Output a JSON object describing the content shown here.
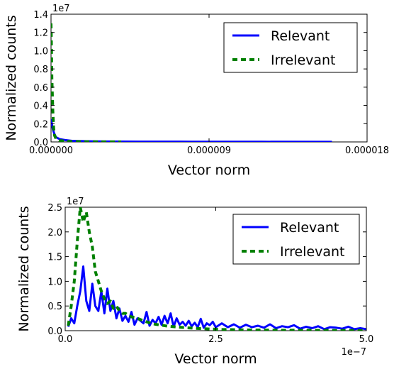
{
  "chart_data": [
    {
      "type": "line",
      "xlabel": "Vector norm",
      "ylabel": "Normalized counts",
      "xlim": [
        0,
        1.8e-05
      ],
      "ylim": [
        0,
        14000000
      ],
      "x_ticks": [
        "0.000000",
        "0.000009",
        "0.000018"
      ],
      "x_tick_values": [
        0,
        9e-06,
        1.8e-05
      ],
      "y_ticks": [
        "0.0",
        "0.2",
        "0.4",
        "0.6",
        "0.8",
        "1.0",
        "1.2",
        "1.4"
      ],
      "y_tick_values": [
        0,
        2000000,
        4000000,
        6000000,
        8000000,
        10000000,
        12000000,
        14000000
      ],
      "y_offset_text": "1e7",
      "legend_position": "upper-right",
      "grid": false,
      "series": [
        {
          "name": "Relevant",
          "color": "#0000ff",
          "style": "solid",
          "x": [
            0,
            5e-08,
            1e-07,
            2e-07,
            3e-07,
            5e-07,
            8e-07,
            1.2e-06,
            2e-06,
            3e-06,
            5e-06,
            8e-06,
            1.2e-05,
            1.6e-05
          ],
          "y": [
            2500000,
            2000000,
            1400000,
            800000,
            500000,
            300000,
            200000,
            120000,
            80000,
            50000,
            30000,
            20000,
            15000,
            10000
          ]
        },
        {
          "name": "Irrelevant",
          "color": "#008000",
          "style": "dashed",
          "x": [
            0,
            2e-08,
            5e-08,
            1e-07,
            1.5e-07,
            2e-07,
            3e-07,
            5e-07,
            8e-07,
            1.2e-06,
            2e-06,
            3e-06,
            4e-06
          ],
          "y": [
            13000000,
            11000000,
            7000000,
            3500000,
            1500000,
            700000,
            300000,
            150000,
            80000,
            40000,
            20000,
            10000,
            5000
          ]
        }
      ]
    },
    {
      "type": "line",
      "xlabel": "Vector norm",
      "ylabel": "Normalized counts",
      "xlim": [
        0,
        5
      ],
      "ylim": [
        0,
        25000000
      ],
      "x_ticks": [
        "0.0",
        "2.5",
        "5.0"
      ],
      "x_tick_values": [
        0,
        2.5,
        5
      ],
      "x_offset_text": "1e−7",
      "y_ticks": [
        "0.0",
        "0.5",
        "1.0",
        "1.5",
        "2.0",
        "2.5"
      ],
      "y_tick_values": [
        0,
        5000000,
        10000000,
        15000000,
        20000000,
        25000000
      ],
      "y_offset_text": "1e7",
      "legend_position": "upper-right",
      "grid": false,
      "series": [
        {
          "name": "Relevant",
          "color": "#0000ff",
          "style": "solid",
          "x": [
            0.05,
            0.1,
            0.15,
            0.2,
            0.25,
            0.3,
            0.35,
            0.4,
            0.45,
            0.5,
            0.55,
            0.6,
            0.65,
            0.7,
            0.75,
            0.8,
            0.85,
            0.9,
            0.95,
            1.0,
            1.05,
            1.1,
            1.15,
            1.2,
            1.25,
            1.3,
            1.35,
            1.4,
            1.45,
            1.5,
            1.55,
            1.6,
            1.65,
            1.7,
            1.75,
            1.8,
            1.85,
            1.9,
            1.95,
            2.0,
            2.05,
            2.1,
            2.15,
            2.2,
            2.25,
            2.3,
            2.35,
            2.4,
            2.45,
            2.5,
            2.6,
            2.7,
            2.8,
            2.9,
            3.0,
            3.1,
            3.2,
            3.3,
            3.4,
            3.5,
            3.6,
            3.7,
            3.8,
            3.9,
            4.0,
            4.1,
            4.2,
            4.3,
            4.4,
            4.5,
            4.6,
            4.7,
            4.8,
            4.9,
            5.0
          ],
          "y": [
            800000,
            2500000,
            1500000,
            5000000,
            8000000,
            13000000,
            6000000,
            4000000,
            9500000,
            5000000,
            4000000,
            8000000,
            3500000,
            8500000,
            4000000,
            6000000,
            2500000,
            4500000,
            2000000,
            3000000,
            1800000,
            3800000,
            1200000,
            2500000,
            2000000,
            1500000,
            3800000,
            1000000,
            2200000,
            1500000,
            2800000,
            1200000,
            3000000,
            1500000,
            3500000,
            800000,
            2500000,
            1200000,
            1800000,
            1000000,
            2000000,
            900000,
            1600000,
            700000,
            2400000,
            600000,
            1500000,
            1100000,
            1800000,
            700000,
            1500000,
            700000,
            1300000,
            600000,
            1200000,
            700000,
            1000000,
            600000,
            1300000,
            500000,
            900000,
            700000,
            1100000,
            400000,
            800000,
            500000,
            900000,
            300000,
            700000,
            600000,
            400000,
            800000,
            300000,
            500000,
            300000
          ]
        },
        {
          "name": "Irrelevant",
          "color": "#008000",
          "style": "dashed",
          "x": [
            0.05,
            0.1,
            0.15,
            0.2,
            0.25,
            0.3,
            0.35,
            0.4,
            0.45,
            0.5,
            0.55,
            0.6,
            0.65,
            0.7,
            0.75,
            0.8,
            0.85,
            0.9,
            0.95,
            1.0,
            1.1,
            1.2,
            1.3,
            1.4,
            1.5,
            1.6,
            1.7,
            1.8,
            1.9,
            2.0,
            2.2,
            2.4,
            2.6,
            2.8,
            3.0,
            3.5,
            4.0,
            4.5,
            5.0
          ],
          "y": [
            1000000,
            5000000,
            10000000,
            18000000,
            25000000,
            22000000,
            24000000,
            20000000,
            17000000,
            12000000,
            10000000,
            8000000,
            6500000,
            5500000,
            6000000,
            4500000,
            5000000,
            4000000,
            3500000,
            3500000,
            2800000,
            2500000,
            2000000,
            1600000,
            1300000,
            1100000,
            900000,
            800000,
            700000,
            600000,
            450000,
            350000,
            250000,
            200000,
            150000,
            100000,
            70000,
            50000,
            30000
          ]
        }
      ]
    }
  ]
}
